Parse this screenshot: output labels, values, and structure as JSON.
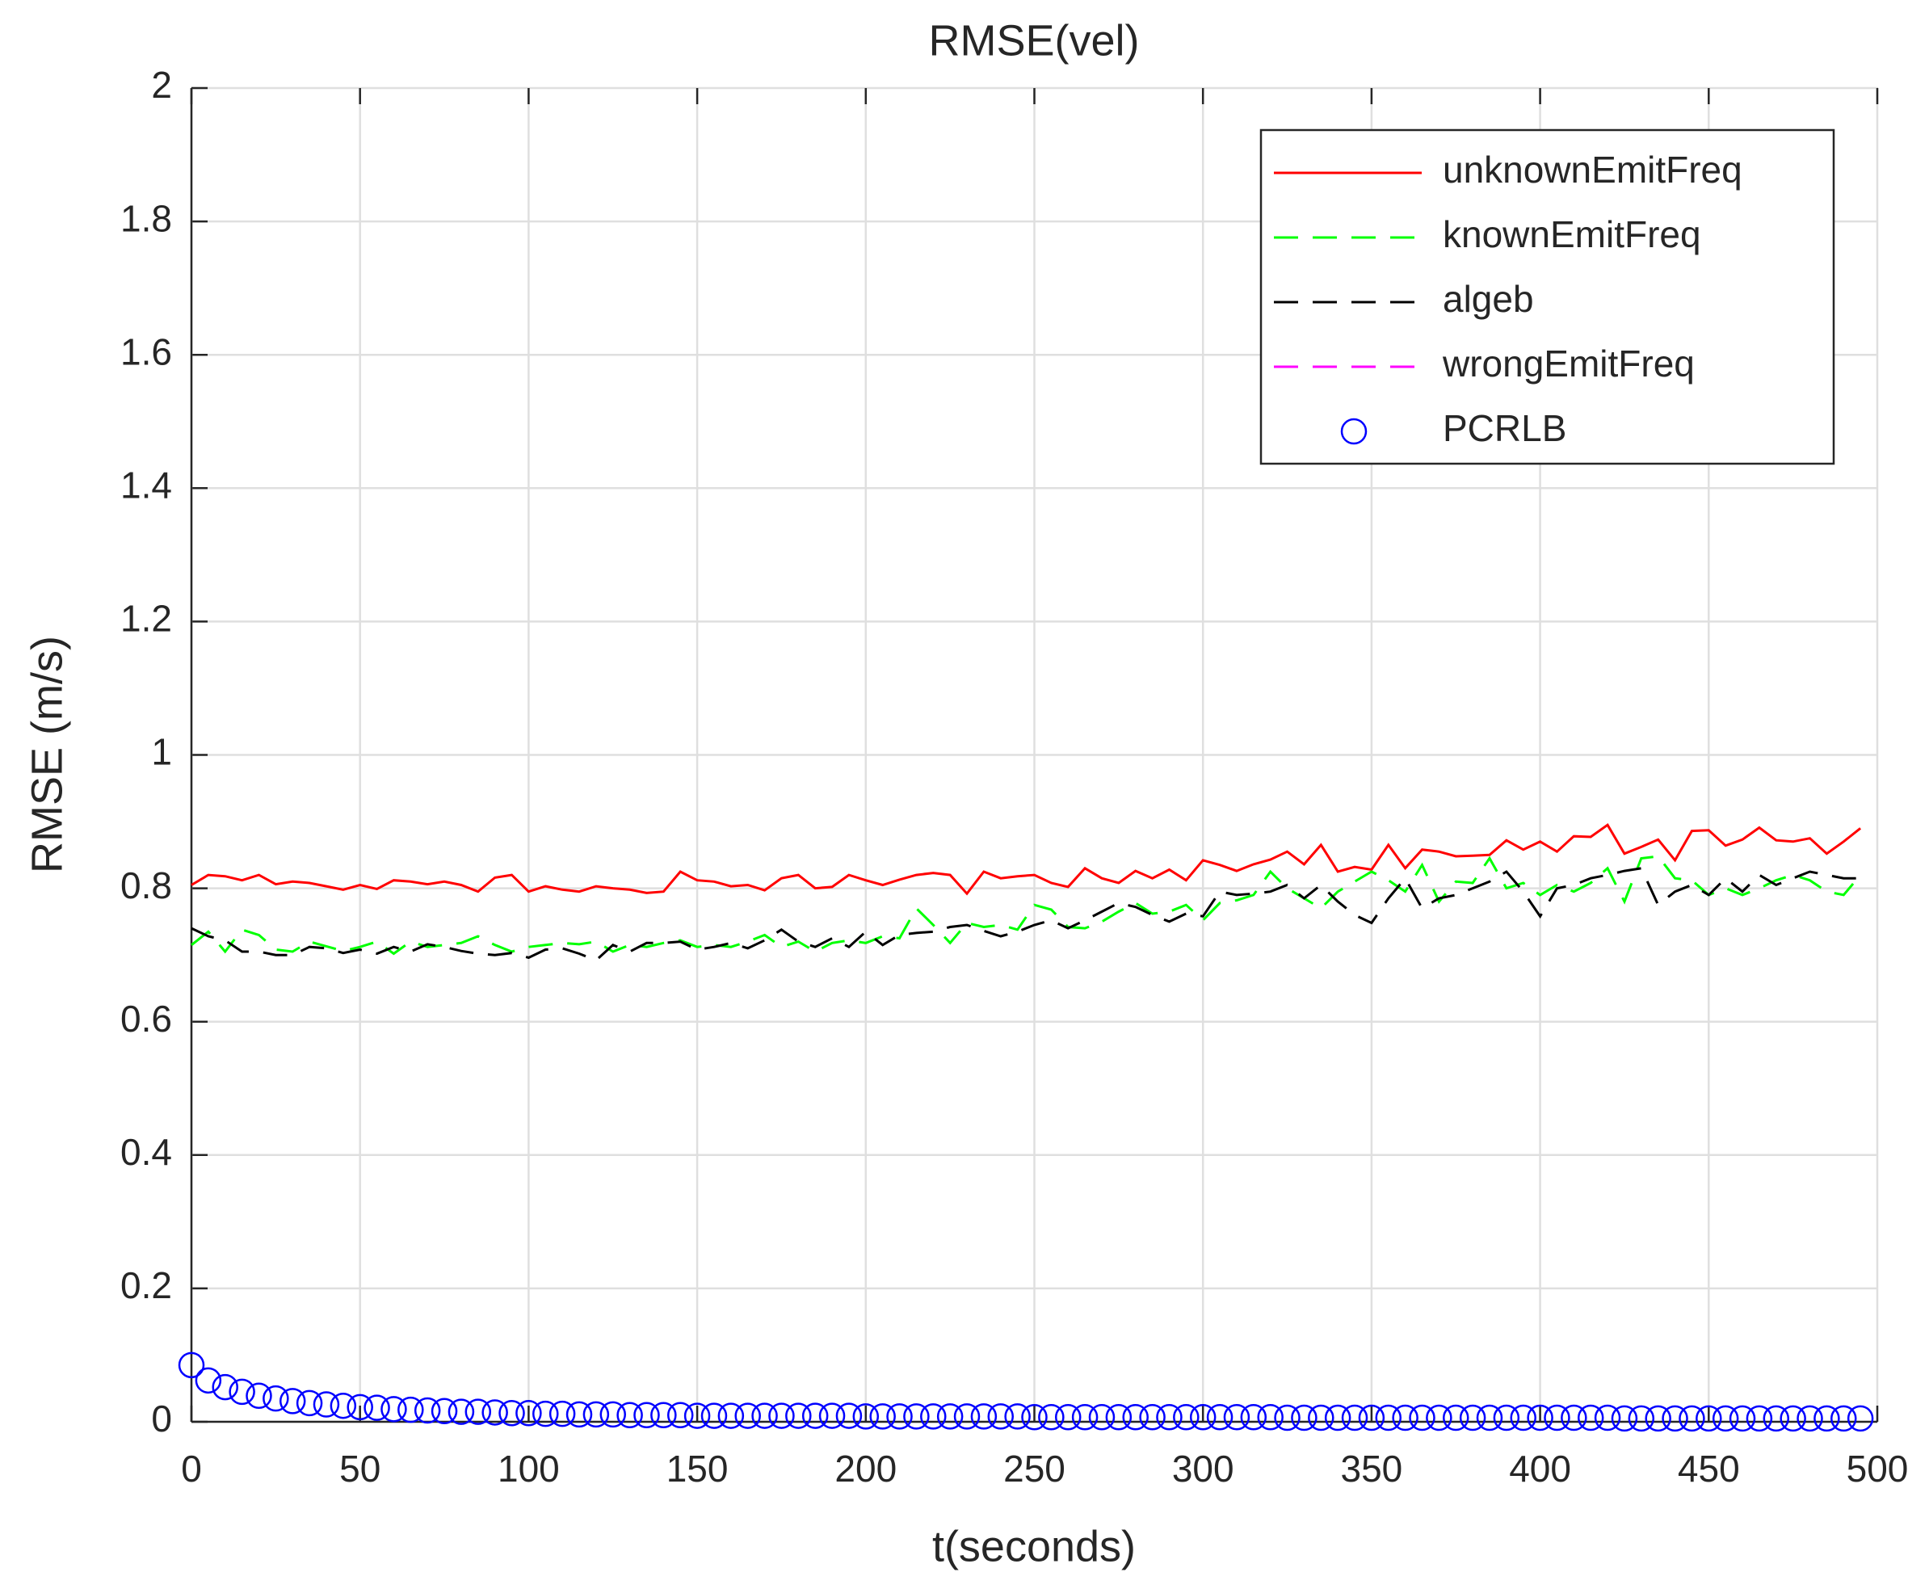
{
  "chart_data": {
    "type": "line",
    "title": "RMSE(vel)",
    "xlabel": "t(seconds)",
    "ylabel": "RMSE (m/s)",
    "x": [
      0,
      5,
      10,
      15,
      20,
      25,
      30,
      35,
      40,
      45,
      50,
      55,
      60,
      65,
      70,
      75,
      80,
      85,
      90,
      95,
      100,
      105,
      110,
      115,
      120,
      125,
      130,
      135,
      140,
      145,
      150,
      155,
      160,
      165,
      170,
      175,
      180,
      185,
      190,
      195,
      200,
      205,
      210,
      215,
      220,
      225,
      230,
      235,
      240,
      245,
      250,
      255,
      260,
      265,
      270,
      275,
      280,
      285,
      290,
      295,
      300,
      305,
      310,
      315,
      320,
      325,
      330,
      335,
      340,
      345,
      350,
      355,
      360,
      365,
      370,
      375,
      380,
      385,
      390,
      395,
      400,
      405,
      410,
      415,
      420,
      425,
      430,
      435,
      440,
      445,
      450,
      455,
      460,
      465,
      470,
      475,
      480,
      485,
      490,
      495
    ],
    "series": [
      {
        "name": "unknownEmitFreq",
        "color": "#ff0000",
        "dash": "solid",
        "values": [
          0.805,
          0.82,
          0.818,
          0.812,
          0.82,
          0.806,
          0.81,
          0.808,
          0.803,
          0.798,
          0.805,
          0.799,
          0.812,
          0.81,
          0.806,
          0.81,
          0.805,
          0.795,
          0.816,
          0.82,
          0.795,
          0.803,
          0.798,
          0.795,
          0.803,
          0.8,
          0.798,
          0.793,
          0.795,
          0.825,
          0.812,
          0.81,
          0.803,
          0.805,
          0.797,
          0.815,
          0.82,
          0.8,
          0.802,
          0.82,
          0.812,
          0.805,
          0.813,
          0.82,
          0.823,
          0.82,
          0.792,
          0.825,
          0.815,
          0.818,
          0.82,
          0.808,
          0.802,
          0.83,
          0.815,
          0.808,
          0.826,
          0.815,
          0.828,
          0.812,
          0.842,
          0.835,
          0.826,
          0.836,
          0.843,
          0.855,
          0.836,
          0.865,
          0.825,
          0.832,
          0.828,
          0.865,
          0.83,
          0.858,
          0.855,
          0.848,
          0.849,
          0.85,
          0.872,
          0.858,
          0.87,
          0.855,
          0.878,
          0.877,
          0.895,
          0.852,
          0.862,
          0.873,
          0.842,
          0.886,
          0.887,
          0.864,
          0.873,
          0.891,
          0.872,
          0.87,
          0.875,
          0.852,
          0.87,
          0.89
        ]
      },
      {
        "name": "knownEmitFreq",
        "color": "#00ff00",
        "dash": "dashed",
        "values": [
          0.715,
          0.735,
          0.705,
          0.738,
          0.73,
          0.708,
          0.705,
          0.72,
          0.713,
          0.706,
          0.712,
          0.72,
          0.702,
          0.72,
          0.712,
          0.715,
          0.718,
          0.728,
          0.715,
          0.705,
          0.712,
          0.715,
          0.718,
          0.716,
          0.72,
          0.705,
          0.715,
          0.712,
          0.718,
          0.722,
          0.712,
          0.715,
          0.712,
          0.72,
          0.73,
          0.712,
          0.72,
          0.705,
          0.718,
          0.722,
          0.718,
          0.728,
          0.725,
          0.77,
          0.745,
          0.718,
          0.748,
          0.742,
          0.745,
          0.738,
          0.775,
          0.768,
          0.742,
          0.74,
          0.75,
          0.765,
          0.778,
          0.762,
          0.765,
          0.775,
          0.752,
          0.778,
          0.782,
          0.79,
          0.825,
          0.8,
          0.785,
          0.77,
          0.795,
          0.81,
          0.825,
          0.812,
          0.795,
          0.835,
          0.78,
          0.81,
          0.808,
          0.845,
          0.8,
          0.808,
          0.79,
          0.805,
          0.795,
          0.808,
          0.83,
          0.78,
          0.845,
          0.848,
          0.815,
          0.812,
          0.79,
          0.8,
          0.79,
          0.8,
          0.812,
          0.82,
          0.812,
          0.795,
          0.79,
          0.82
        ]
      },
      {
        "name": "algeb",
        "color": "#000000",
        "dash": "dashed",
        "values": [
          0.74,
          0.728,
          0.722,
          0.705,
          0.705,
          0.7,
          0.7,
          0.712,
          0.71,
          0.703,
          0.708,
          0.702,
          0.712,
          0.705,
          0.716,
          0.712,
          0.706,
          0.702,
          0.7,
          0.703,
          0.696,
          0.708,
          0.71,
          0.702,
          0.692,
          0.715,
          0.705,
          0.718,
          0.718,
          0.72,
          0.708,
          0.712,
          0.718,
          0.71,
          0.722,
          0.738,
          0.72,
          0.712,
          0.725,
          0.712,
          0.735,
          0.715,
          0.73,
          0.733,
          0.735,
          0.742,
          0.745,
          0.736,
          0.728,
          0.735,
          0.745,
          0.752,
          0.74,
          0.752,
          0.765,
          0.778,
          0.772,
          0.76,
          0.75,
          0.762,
          0.758,
          0.795,
          0.79,
          0.792,
          0.795,
          0.805,
          0.785,
          0.805,
          0.78,
          0.76,
          0.748,
          0.785,
          0.815,
          0.77,
          0.785,
          0.79,
          0.8,
          0.81,
          0.825,
          0.795,
          0.758,
          0.8,
          0.805,
          0.815,
          0.82,
          0.826,
          0.83,
          0.775,
          0.795,
          0.805,
          0.79,
          0.815,
          0.795,
          0.82,
          0.805,
          0.815,
          0.825,
          0.82,
          0.815,
          0.815
        ]
      },
      {
        "name": "wrongEmitFreq",
        "color": "#ff00ff",
        "dash": "dashed",
        "values": [
          null,
          null,
          null,
          null,
          null,
          null,
          null,
          null,
          null,
          null,
          null,
          null,
          null,
          null,
          null,
          null,
          null,
          null,
          null,
          null,
          null,
          null,
          null,
          null,
          null,
          null,
          null,
          null,
          null,
          null,
          null,
          null,
          null,
          null,
          null,
          null,
          null,
          null,
          null,
          null,
          null,
          null,
          null,
          null,
          null,
          null,
          null,
          null,
          null,
          null,
          null,
          null,
          null,
          null,
          null,
          null,
          null,
          null,
          null,
          null,
          null,
          null,
          null,
          null,
          null,
          null,
          null,
          null,
          null,
          null,
          null,
          null,
          null,
          null,
          null,
          null,
          null,
          null,
          null,
          null,
          null,
          null,
          null,
          null,
          null,
          null,
          null,
          null,
          null,
          null,
          null,
          null,
          null,
          null,
          null,
          null,
          null,
          null,
          null,
          null
        ]
      },
      {
        "name": "PCRLB",
        "color": "#0000ff",
        "marker": "o",
        "values": [
          0.085,
          0.062,
          0.052,
          0.045,
          0.039,
          0.035,
          0.031,
          0.028,
          0.026,
          0.024,
          0.022,
          0.021,
          0.019,
          0.018,
          0.017,
          0.016,
          0.015,
          0.015,
          0.014,
          0.013,
          0.013,
          0.012,
          0.012,
          0.011,
          0.011,
          0.011,
          0.01,
          0.01,
          0.01,
          0.01,
          0.009,
          0.009,
          0.009,
          0.009,
          0.009,
          0.009,
          0.009,
          0.009,
          0.009,
          0.009,
          0.008,
          0.008,
          0.008,
          0.008,
          0.008,
          0.008,
          0.008,
          0.008,
          0.008,
          0.008,
          0.007,
          0.007,
          0.007,
          0.007,
          0.007,
          0.007,
          0.007,
          0.007,
          0.007,
          0.007,
          0.007,
          0.007,
          0.007,
          0.007,
          0.007,
          0.006,
          0.006,
          0.006,
          0.006,
          0.006,
          0.006,
          0.006,
          0.006,
          0.006,
          0.006,
          0.006,
          0.006,
          0.006,
          0.006,
          0.006,
          0.006,
          0.006,
          0.006,
          0.006,
          0.006,
          0.005,
          0.005,
          0.005,
          0.005,
          0.005,
          0.005,
          0.005,
          0.005,
          0.005,
          0.005,
          0.005,
          0.005,
          0.005,
          0.005,
          0.005
        ]
      }
    ],
    "xlim": [
      0,
      500
    ],
    "xticks": [
      0,
      50,
      100,
      150,
      200,
      250,
      300,
      350,
      400,
      450,
      500
    ],
    "ylim": [
      0,
      2
    ],
    "yticks": [
      0,
      0.2,
      0.4,
      0.6,
      0.8,
      1,
      1.2,
      1.4,
      1.6,
      1.8,
      2
    ],
    "grid": true,
    "legend": "northeast"
  }
}
